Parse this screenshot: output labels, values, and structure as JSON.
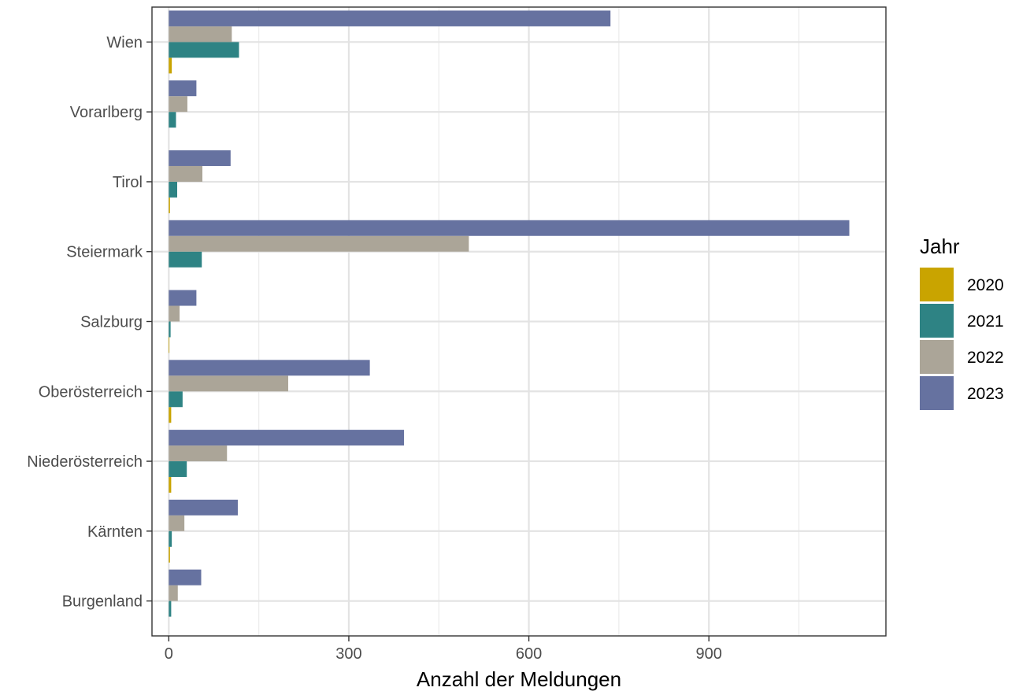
{
  "chart_data": {
    "type": "bar",
    "orientation": "horizontal",
    "title": "",
    "xlabel": "Anzahl der Meldungen",
    "ylabel": "",
    "xlim": [
      -28,
      1195
    ],
    "x_ticks": [
      0,
      300,
      600,
      900
    ],
    "x_tick_labels": [
      "0",
      "300",
      "600",
      "900"
    ],
    "grid": true,
    "legend": {
      "title": "Jahr",
      "position": "right"
    },
    "categories": [
      "Burgenland",
      "Kärnten",
      "Niederösterreich",
      "Oberösterreich",
      "Salzburg",
      "Steiermark",
      "Tirol",
      "Vorarlberg",
      "Wien"
    ],
    "series": [
      {
        "name": "2020",
        "color": "#C9A400",
        "values": [
          0,
          2,
          4,
          4,
          1,
          0,
          2,
          0,
          5
        ]
      },
      {
        "name": "2021",
        "color": "#2E8384",
        "values": [
          4,
          5,
          30,
          23,
          3,
          55,
          14,
          12,
          117
        ]
      },
      {
        "name": "2022",
        "color": "#ABA598",
        "values": [
          15,
          26,
          97,
          199,
          18,
          500,
          56,
          31,
          105
        ]
      },
      {
        "name": "2023",
        "color": "#6672A0",
        "values": [
          54,
          115,
          392,
          335,
          46,
          1134,
          103,
          46,
          736
        ]
      }
    ]
  }
}
